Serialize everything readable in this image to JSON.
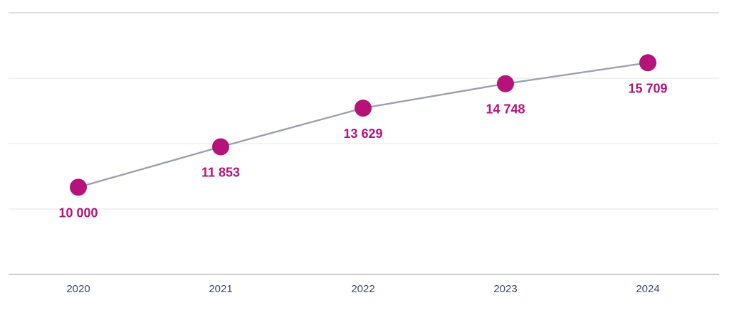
{
  "chart_data": {
    "type": "line",
    "categories": [
      "2020",
      "2021",
      "2022",
      "2023",
      "2024"
    ],
    "series": [
      {
        "values": [
          10000,
          11853,
          13629,
          14748,
          15709
        ],
        "labels": [
          "10 000",
          "11 853",
          "13 629",
          "14 748",
          "15 709"
        ]
      }
    ],
    "ylim": [
      6000,
      18000
    ],
    "grid": true,
    "colors": {
      "marker": "#b5127a",
      "line": "#9aa0ad",
      "label": "#b5127a",
      "tick": "#3a4a6b"
    }
  }
}
